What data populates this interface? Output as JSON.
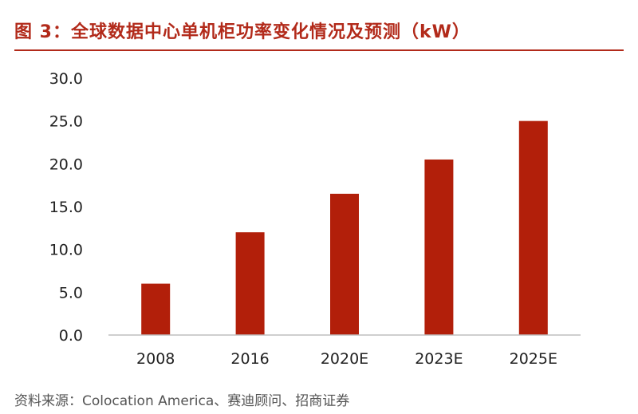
{
  "title": "图 3：全球数据中心单机柜功率变化情况及预测（kW）",
  "source": "资料来源：Colocation America、赛迪顾问、招商证券",
  "colors": {
    "title": "#b22a1a",
    "bar": "#b21f0a",
    "axis": "#bfbfbf"
  },
  "chart_data": {
    "type": "bar",
    "title": "图 3：全球数据中心单机柜功率变化情况及预测（kW）",
    "categories": [
      "2008",
      "2016",
      "2020E",
      "2023E",
      "2025E"
    ],
    "values": [
      6.0,
      12.0,
      16.5,
      20.5,
      25.0
    ],
    "ylim": [
      0,
      30
    ],
    "yticks": [
      "0.0",
      "5.0",
      "10.0",
      "15.0",
      "20.0",
      "25.0",
      "30.0"
    ],
    "xlabel": "",
    "ylabel": "",
    "grid": false,
    "legend": "none"
  }
}
